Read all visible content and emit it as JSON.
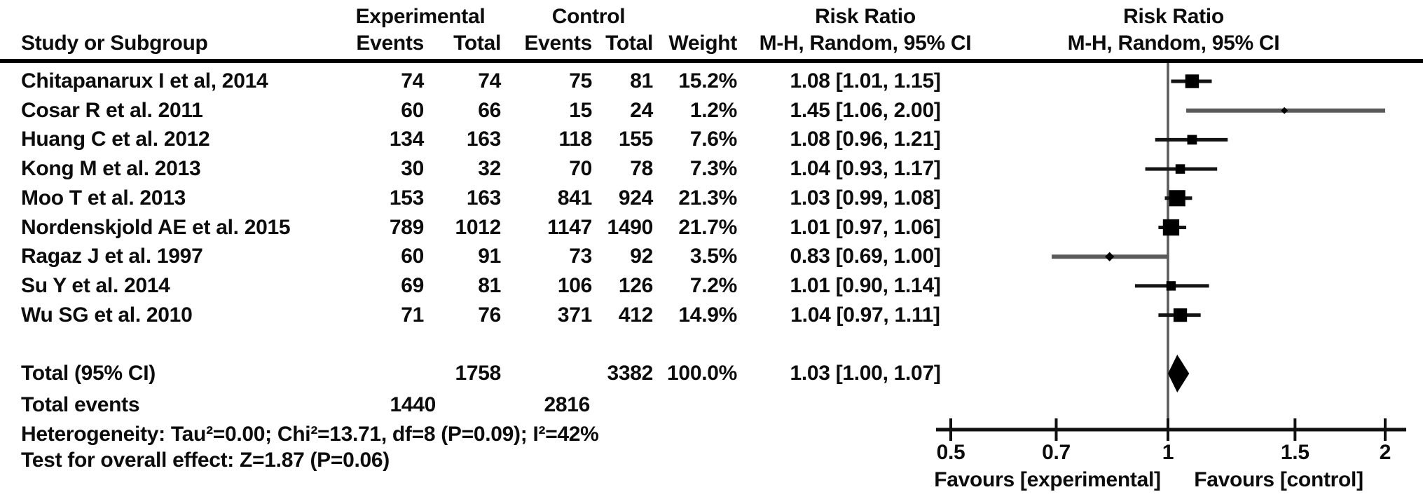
{
  "figure": {
    "header": {
      "study_col": "Study or Subgroup",
      "experimental_group": "Experimental",
      "control_group": "Control",
      "events_col": "Events",
      "total_col": "Total",
      "events_col2": "Events",
      "total_col2": "Total",
      "weight_col": "Weight",
      "rr_col_title": "Risk Ratio",
      "rr_col_sub": "M-H, Random, 95% CI",
      "plot_col_title": "Risk Ratio",
      "plot_col_sub": "M-H, Random, 95% CI"
    }
  },
  "chart_data": {
    "type": "forest",
    "effect_measure": "Risk Ratio",
    "method": "Mantel-Haenszel, Random effects, 95% CI",
    "x_scale": "log",
    "xlim": [
      0.5,
      2
    ],
    "axis_ticks": [
      0.5,
      0.7,
      1,
      1.5,
      2
    ],
    "axis_tick_labels": [
      "0.5",
      "0.7",
      "1",
      "1.5",
      "2"
    ],
    "favours_left": "Favours [experimental]",
    "favours_right": "Favours [control]",
    "studies": [
      {
        "name": "Chitapanarux I et al, 2014",
        "exp_events": 74,
        "exp_total": 74,
        "ctl_events": 75,
        "ctl_total": 81,
        "weight_label": "15.2%",
        "weight_pct": 15.2,
        "rr": 1.08,
        "ci_low": 1.01,
        "ci_high": 1.15,
        "rr_label": "1.08 [1.01, 1.15]"
      },
      {
        "name": "Cosar R et al. 2011",
        "exp_events": 60,
        "exp_total": 66,
        "ctl_events": 15,
        "ctl_total": 24,
        "weight_label": "1.2%",
        "weight_pct": 1.2,
        "rr": 1.45,
        "ci_low": 1.06,
        "ci_high": 2.0,
        "rr_label": "1.45 [1.06, 2.00]"
      },
      {
        "name": "Huang C et al. 2012",
        "exp_events": 134,
        "exp_total": 163,
        "ctl_events": 118,
        "ctl_total": 155,
        "weight_label": "7.6%",
        "weight_pct": 7.6,
        "rr": 1.08,
        "ci_low": 0.96,
        "ci_high": 1.21,
        "rr_label": "1.08 [0.96, 1.21]"
      },
      {
        "name": "Kong M et al. 2013",
        "exp_events": 30,
        "exp_total": 32,
        "ctl_events": 70,
        "ctl_total": 78,
        "weight_label": "7.3%",
        "weight_pct": 7.3,
        "rr": 1.04,
        "ci_low": 0.93,
        "ci_high": 1.17,
        "rr_label": "1.04 [0.93, 1.17]"
      },
      {
        "name": "Moo T et al. 2013",
        "exp_events": 153,
        "exp_total": 163,
        "ctl_events": 841,
        "ctl_total": 924,
        "weight_label": "21.3%",
        "weight_pct": 21.3,
        "rr": 1.03,
        "ci_low": 0.99,
        "ci_high": 1.08,
        "rr_label": "1.03 [0.99, 1.08]"
      },
      {
        "name": "Nordenskjold AE et al. 2015",
        "exp_events": 789,
        "exp_total": 1012,
        "ctl_events": 1147,
        "ctl_total": 1490,
        "weight_label": "21.7%",
        "weight_pct": 21.7,
        "rr": 1.01,
        "ci_low": 0.97,
        "ci_high": 1.06,
        "rr_label": "1.01 [0.97, 1.06]"
      },
      {
        "name": "Ragaz J et al. 1997",
        "exp_events": 60,
        "exp_total": 91,
        "ctl_events": 73,
        "ctl_total": 92,
        "weight_label": "3.5%",
        "weight_pct": 3.5,
        "rr": 0.83,
        "ci_low": 0.69,
        "ci_high": 1.0,
        "rr_label": "0.83 [0.69, 1.00]"
      },
      {
        "name": "Su Y et al. 2014",
        "exp_events": 69,
        "exp_total": 81,
        "ctl_events": 106,
        "ctl_total": 126,
        "weight_label": "7.2%",
        "weight_pct": 7.2,
        "rr": 1.01,
        "ci_low": 0.9,
        "ci_high": 1.14,
        "rr_label": "1.01 [0.90, 1.14]"
      },
      {
        "name": "Wu SG et al. 2010",
        "exp_events": 71,
        "exp_total": 76,
        "ctl_events": 371,
        "ctl_total": 412,
        "weight_label": "14.9%",
        "weight_pct": 14.9,
        "rr": 1.04,
        "ci_low": 0.97,
        "ci_high": 1.11,
        "rr_label": "1.04 [0.97, 1.11]"
      }
    ],
    "total": {
      "label": "Total (95% CI)",
      "exp_total": 1758,
      "ctl_total": 3382,
      "weight_label": "100.0%",
      "rr": 1.03,
      "ci_low": 1.0,
      "ci_high": 1.07,
      "rr_label": "1.03 [1.00, 1.07]"
    },
    "total_events": {
      "label": "Total events",
      "experimental": 1440,
      "control": 2816
    },
    "heterogeneity": "Heterogeneity: Tau²=0.00; Chi²=13.71, df=8 (P=0.09); I²=42%",
    "overall_effect": "Test for overall effect: Z=1.87 (P=0.06)",
    "colors": {
      "marker": "#000000",
      "ci_line": "#141414",
      "ci_line_light": "#5a5a5a",
      "reference_line": "#5a5a5a",
      "axis": "#111111"
    }
  }
}
